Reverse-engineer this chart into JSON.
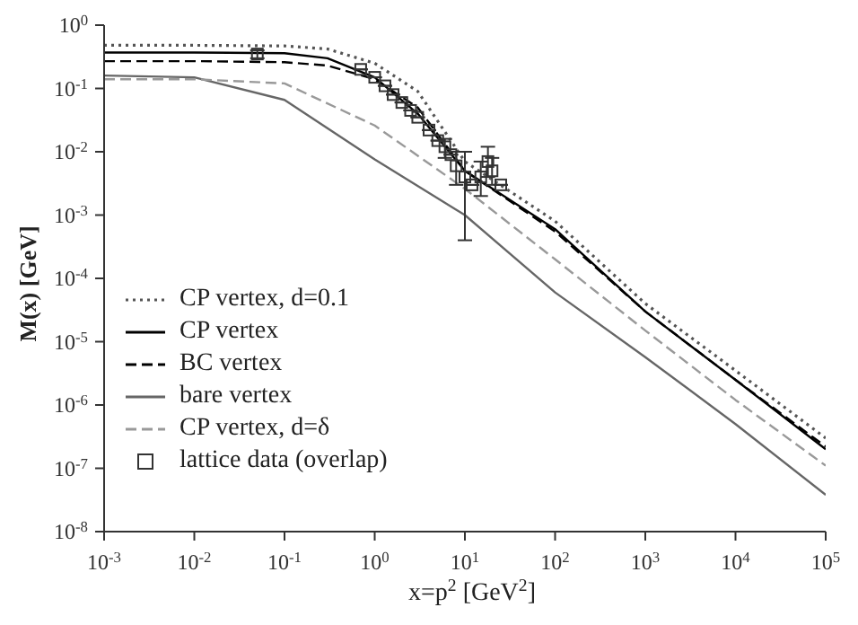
{
  "chart_data": {
    "type": "line",
    "xlabel": "x=p$^{2}$ [GeV$^{2}$]",
    "ylabel": "M(x) [GeV]",
    "log": "xy",
    "grid": false,
    "legend": "bottom left",
    "xlim": [
      0.001,
      100000
    ],
    "ylim": [
      1e-08,
      1
    ],
    "xticks": [
      {
        "value": 0.001,
        "label": "10$^{-3}$"
      },
      {
        "value": 0.01,
        "label": "10$^{-2}$"
      },
      {
        "value": 0.1,
        "label": "10$^{-1}$"
      },
      {
        "value": 1,
        "label": "10$^{0}$"
      },
      {
        "value": 10,
        "label": "10$^{1}$"
      },
      {
        "value": 100,
        "label": "10$^{2}$"
      },
      {
        "value": 1000,
        "label": "10$^{3}$"
      },
      {
        "value": 10000,
        "label": "10$^{4}$"
      },
      {
        "value": 100000,
        "label": "10$^{5}$"
      }
    ],
    "yticks": [
      {
        "value": 1e-08,
        "label": "10$^{-8}$"
      },
      {
        "value": 1e-07,
        "label": "10$^{-7}$"
      },
      {
        "value": 1e-06,
        "label": "10$^{-6}$"
      },
      {
        "value": 1e-05,
        "label": "10$^{-5}$"
      },
      {
        "value": 0.0001,
        "label": "10$^{-4}$"
      },
      {
        "value": 0.001,
        "label": "10$^{-3}$"
      },
      {
        "value": 0.01,
        "label": "10$^{-2}$"
      },
      {
        "value": 0.1,
        "label": "10$^{-1}$"
      },
      {
        "value": 1,
        "label": "10$^{0}$"
      }
    ],
    "series": [
      {
        "name": "CP vertex, d=0.1",
        "line_style": "dotted",
        "color": "#555555",
        "x": [
          0.001,
          0.01,
          0.1,
          0.3,
          1,
          3,
          10,
          100,
          1000,
          10000,
          100000
        ],
        "values": [
          0.48,
          0.48,
          0.47,
          0.42,
          0.25,
          0.09,
          0.007,
          0.0008,
          4e-05,
          3.5e-06,
          3e-07
        ]
      },
      {
        "name": "CP vertex",
        "line_style": "solid",
        "color": "#000000",
        "x": [
          0.001,
          0.01,
          0.1,
          0.3,
          1,
          3,
          10,
          100,
          1000,
          10000,
          100000
        ],
        "values": [
          0.37,
          0.37,
          0.36,
          0.3,
          0.15,
          0.04,
          0.005,
          0.0006,
          3e-05,
          2.5e-06,
          2e-07
        ]
      },
      {
        "name": "BC vertex",
        "line_style": "dashed",
        "color": "#000000",
        "x": [
          0.001,
          0.01,
          0.1,
          0.3,
          1,
          3,
          10,
          100,
          1000,
          10000,
          100000
        ],
        "values": [
          0.27,
          0.27,
          0.26,
          0.23,
          0.14,
          0.05,
          0.005,
          0.00055,
          3e-05,
          2.5e-06,
          2.2e-07
        ]
      },
      {
        "name": "bare vertex",
        "line_style": "solid",
        "color": "#666666",
        "x": [
          0.001,
          0.01,
          0.1,
          1,
          10,
          100,
          1000,
          10000,
          100000
        ],
        "values": [
          0.16,
          0.15,
          0.066,
          0.0076,
          0.001,
          6e-05,
          5.7e-06,
          5e-07,
          3.8e-08
        ]
      },
      {
        "name": "CP vertex, d=δ",
        "line_style": "dashed",
        "color": "#999999",
        "x": [
          0.001,
          0.01,
          0.1,
          1,
          10,
          100,
          1000,
          10000,
          100000
        ],
        "values": [
          0.14,
          0.14,
          0.12,
          0.026,
          0.0026,
          0.0002,
          1.5e-05,
          1.2e-06,
          1.1e-07
        ]
      },
      {
        "name": "lattice data (overlap)",
        "type": "scatter",
        "marker": "square",
        "color": "#333333",
        "x": [
          0.05,
          0.7,
          1,
          1.3,
          1.6,
          2,
          2.5,
          3,
          4,
          5,
          6,
          7,
          8,
          10,
          12,
          15,
          18,
          20,
          25
        ],
        "values": [
          0.35,
          0.2,
          0.15,
          0.11,
          0.08,
          0.06,
          0.045,
          0.035,
          0.022,
          0.015,
          0.012,
          0.009,
          0.006,
          0.004,
          0.003,
          0.004,
          0.007,
          0.005,
          0.003
        ],
        "errors": [
          [
            0.3,
            0.4
          ],
          null,
          null,
          null,
          null,
          null,
          null,
          null,
          null,
          null,
          [
            0.008,
            0.016
          ],
          null,
          [
            0.003,
            0.01
          ],
          [
            0.0004,
            0.01
          ],
          null,
          [
            0.002,
            0.007
          ],
          [
            0.004,
            0.012
          ],
          [
            0.003,
            0.008
          ],
          null
        ]
      }
    ]
  }
}
